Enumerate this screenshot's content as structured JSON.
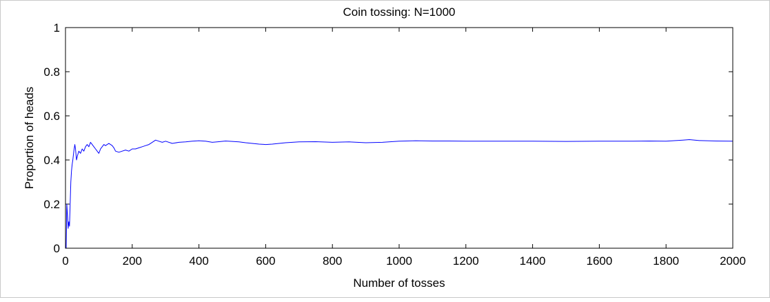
{
  "chart_data": {
    "type": "line",
    "title": "Coin tossing: N=1000",
    "xlabel": "Number of tosses",
    "ylabel": "Proportion of heads",
    "xlim": [
      0,
      2000
    ],
    "ylim": [
      0,
      1
    ],
    "xticks": [
      0,
      200,
      400,
      600,
      800,
      1000,
      1200,
      1400,
      1600,
      1800,
      2000
    ],
    "yticks": [
      0,
      0.2,
      0.4,
      0.6,
      0.8,
      1
    ],
    "ytick_labels": [
      "0",
      "0.2",
      "0.4",
      "0.6",
      "0.8",
      "1"
    ],
    "grid": false,
    "series": [
      {
        "color": "#0000ff",
        "x": [
          1,
          2,
          4,
          6,
          8,
          10,
          12,
          14,
          16,
          18,
          20,
          22,
          25,
          28,
          30,
          33,
          36,
          40,
          45,
          50,
          55,
          60,
          65,
          70,
          75,
          80,
          85,
          90,
          95,
          100,
          105,
          110,
          115,
          120,
          125,
          130,
          135,
          140,
          145,
          150,
          160,
          170,
          180,
          190,
          200,
          210,
          220,
          230,
          240,
          250,
          260,
          270,
          280,
          290,
          300,
          320,
          340,
          360,
          380,
          400,
          420,
          440,
          460,
          480,
          500,
          520,
          540,
          560,
          580,
          600,
          620,
          640,
          660,
          680,
          700,
          750,
          800,
          850,
          900,
          950,
          1000,
          1050,
          1100,
          1150,
          1200,
          1300,
          1400,
          1500,
          1600,
          1700,
          1750,
          1800,
          1850,
          1870,
          1900,
          1950,
          2000
        ],
        "y": [
          0.0,
          0.0,
          0.2,
          0.15,
          0.09,
          0.12,
          0.1,
          0.2,
          0.3,
          0.35,
          0.38,
          0.4,
          0.44,
          0.47,
          0.45,
          0.4,
          0.42,
          0.44,
          0.43,
          0.45,
          0.44,
          0.46,
          0.47,
          0.46,
          0.48,
          0.47,
          0.46,
          0.45,
          0.44,
          0.43,
          0.45,
          0.46,
          0.47,
          0.465,
          0.47,
          0.475,
          0.47,
          0.465,
          0.455,
          0.44,
          0.435,
          0.44,
          0.445,
          0.44,
          0.45,
          0.45,
          0.455,
          0.46,
          0.465,
          0.47,
          0.48,
          0.49,
          0.485,
          0.48,
          0.485,
          0.475,
          0.48,
          0.482,
          0.485,
          0.487,
          0.485,
          0.48,
          0.483,
          0.486,
          0.484,
          0.482,
          0.478,
          0.475,
          0.472,
          0.47,
          0.472,
          0.475,
          0.478,
          0.48,
          0.482,
          0.483,
          0.48,
          0.482,
          0.478,
          0.48,
          0.485,
          0.487,
          0.486,
          0.486,
          0.485,
          0.485,
          0.485,
          0.484,
          0.485,
          0.485,
          0.486,
          0.485,
          0.49,
          0.492,
          0.488,
          0.486,
          0.485
        ]
      }
    ]
  }
}
